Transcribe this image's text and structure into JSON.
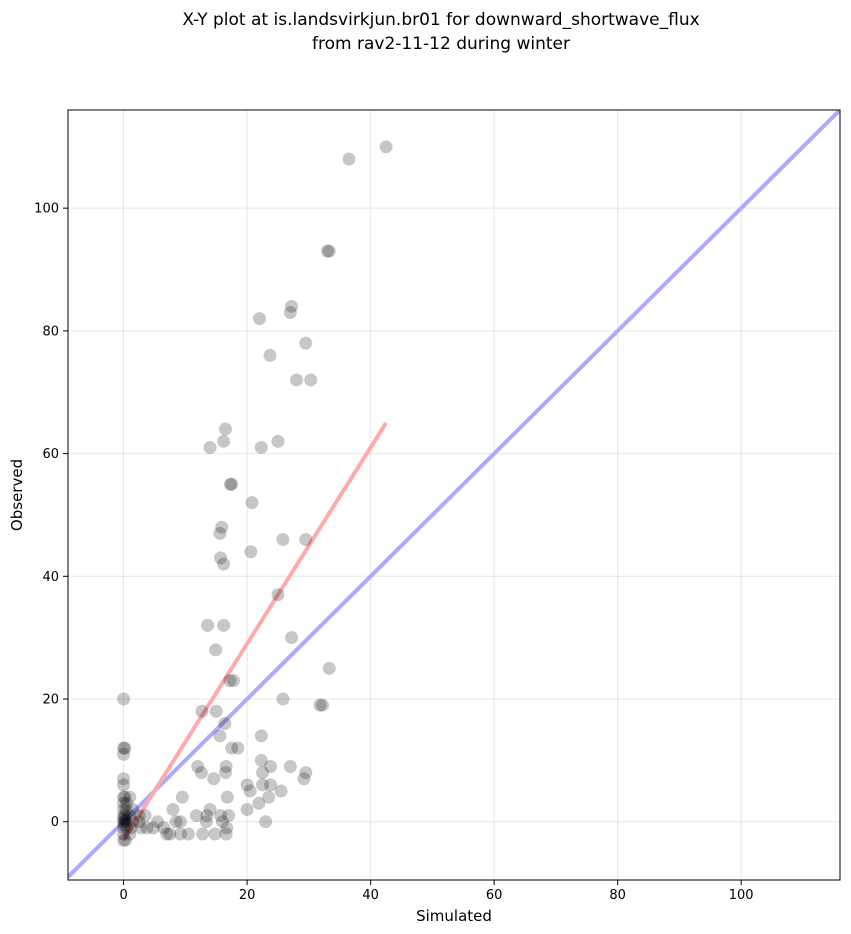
{
  "chart_data": {
    "type": "scatter",
    "title": [
      "X-Y plot at is.landsvirkjun.br01 for downward_shortwave_flux",
      "from rav2-11-12 during winter"
    ],
    "xlabel": "Simulated",
    "ylabel": "Observed",
    "xlim": [
      -9,
      116
    ],
    "ylim": [
      -9.5,
      116
    ],
    "xticks": [
      0,
      20,
      40,
      60,
      80,
      100
    ],
    "yticks": [
      0,
      20,
      40,
      60,
      80,
      100
    ],
    "grid": true,
    "points_color": "#000000",
    "reference_line": {
      "name": "1:1 line",
      "color": "#aaaaff",
      "from": [
        -9,
        -9
      ],
      "to": [
        116,
        116
      ]
    },
    "fit_line": {
      "name": "regression",
      "color": "#ffaaaa",
      "from": [
        0,
        -3
      ],
      "to": [
        42.5,
        65
      ]
    },
    "points": [
      [
        36.5,
        108
      ],
      [
        42.5,
        110
      ],
      [
        33,
        93
      ],
      [
        33.3,
        93
      ],
      [
        27.2,
        84
      ],
      [
        27,
        83
      ],
      [
        22,
        82
      ],
      [
        23.7,
        76
      ],
      [
        29.5,
        78
      ],
      [
        28,
        72
      ],
      [
        30.3,
        72
      ],
      [
        16.5,
        64
      ],
      [
        16.2,
        62
      ],
      [
        25,
        62
      ],
      [
        14,
        61
      ],
      [
        22.3,
        61
      ],
      [
        17.3,
        55
      ],
      [
        17.5,
        55
      ],
      [
        20.8,
        52
      ],
      [
        15.9,
        48
      ],
      [
        15.6,
        47
      ],
      [
        25.8,
        46
      ],
      [
        29.5,
        46
      ],
      [
        20.6,
        44
      ],
      [
        15.7,
        43
      ],
      [
        16.2,
        42
      ],
      [
        25,
        37
      ],
      [
        13.6,
        32
      ],
      [
        16.2,
        32
      ],
      [
        27.2,
        30
      ],
      [
        14.9,
        28
      ],
      [
        33.3,
        25
      ],
      [
        17.2,
        23
      ],
      [
        17.8,
        23
      ],
      [
        0,
        20
      ],
      [
        25.8,
        20
      ],
      [
        31.8,
        19
      ],
      [
        32.2,
        19
      ],
      [
        12.7,
        18
      ],
      [
        15,
        18
      ],
      [
        16.4,
        16
      ],
      [
        15.6,
        14
      ],
      [
        22.3,
        14
      ],
      [
        0,
        12
      ],
      [
        0.2,
        12
      ],
      [
        17.5,
        12
      ],
      [
        18.5,
        12
      ],
      [
        0,
        11
      ],
      [
        12,
        9
      ],
      [
        16.6,
        9
      ],
      [
        22.3,
        10
      ],
      [
        27,
        9
      ],
      [
        23.8,
        9
      ],
      [
        12.6,
        8
      ],
      [
        16.5,
        8
      ],
      [
        22.5,
        8
      ],
      [
        29.5,
        8
      ],
      [
        0,
        7
      ],
      [
        29.2,
        7
      ],
      [
        14.6,
        7
      ],
      [
        20,
        6
      ],
      [
        22.5,
        6
      ],
      [
        23.8,
        6
      ],
      [
        0,
        6
      ],
      [
        20.5,
        5
      ],
      [
        25.5,
        5
      ],
      [
        0,
        4
      ],
      [
        0.2,
        4
      ],
      [
        1,
        4
      ],
      [
        9.5,
        4
      ],
      [
        16.8,
        4
      ],
      [
        23.5,
        4
      ],
      [
        21.9,
        3
      ],
      [
        0,
        3
      ],
      [
        0.5,
        3
      ],
      [
        0,
        2
      ],
      [
        0.4,
        2
      ],
      [
        1.5,
        2
      ],
      [
        8,
        2
      ],
      [
        14,
        2
      ],
      [
        20,
        2
      ],
      [
        0,
        1
      ],
      [
        0.3,
        1
      ],
      [
        1,
        1
      ],
      [
        2.5,
        1
      ],
      [
        3.5,
        1
      ],
      [
        11.8,
        1
      ],
      [
        13.5,
        1
      ],
      [
        15.7,
        1
      ],
      [
        17,
        1
      ],
      [
        0,
        0
      ],
      [
        0.2,
        0
      ],
      [
        0.5,
        0
      ],
      [
        1.5,
        0
      ],
      [
        2.5,
        0
      ],
      [
        5.5,
        0
      ],
      [
        8.5,
        0
      ],
      [
        9.2,
        0
      ],
      [
        13.4,
        0
      ],
      [
        16,
        0
      ],
      [
        23,
        0
      ],
      [
        0,
        0.5
      ],
      [
        0.3,
        0.3
      ],
      [
        0,
        -1
      ],
      [
        0.5,
        -1
      ],
      [
        1.2,
        -1
      ],
      [
        2.8,
        -1
      ],
      [
        3.8,
        -1
      ],
      [
        4.8,
        -1
      ],
      [
        6.5,
        -1
      ],
      [
        16.7,
        -1
      ],
      [
        0,
        -2
      ],
      [
        1,
        -2
      ],
      [
        7,
        -2
      ],
      [
        7.5,
        -2
      ],
      [
        9.2,
        -2
      ],
      [
        10.5,
        -2
      ],
      [
        12.8,
        -2
      ],
      [
        14.8,
        -2
      ],
      [
        16.6,
        -2
      ],
      [
        0,
        -3
      ],
      [
        0.3,
        -3
      ],
      [
        0.1,
        -0.5
      ]
    ]
  }
}
